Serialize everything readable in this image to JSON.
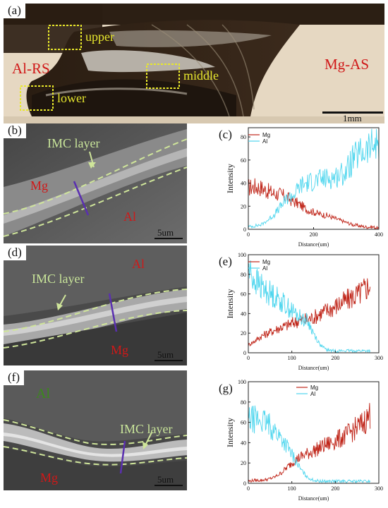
{
  "panels": {
    "a": {
      "letter": "(a)",
      "labels": {
        "al_rs": "Al-RS",
        "mg_as": "Mg-AS",
        "upper": "upper",
        "middle": "middle",
        "lower": "lower"
      },
      "scale": "1mm"
    },
    "b": {
      "letter": "(b)",
      "imc": "IMC layer",
      "mg": "Mg",
      "al": "Al",
      "scale": "5um"
    },
    "d": {
      "letter": "(d)",
      "imc": "IMC layer",
      "mg": "Mg",
      "al": "Al",
      "scale": "5um"
    },
    "f": {
      "letter": "(f)",
      "imc": "IMC layer",
      "mg": "Mg",
      "al": "Al",
      "scale": "5um"
    },
    "c": {
      "letter": "(c)"
    },
    "e": {
      "letter": "(e)"
    },
    "g": {
      "letter": "(g)"
    }
  },
  "colors": {
    "mg": "#c0261a",
    "al": "#4fd6ee",
    "imc_outline": "#cfe59a",
    "box": "#e8e82a",
    "line_scan": "#5a2fb0"
  },
  "chart_data": [
    {
      "id": "c",
      "type": "line",
      "xlabel": "Distance(um)",
      "ylabel": "Intensity",
      "xlim": [
        0,
        400
      ],
      "ylim": [
        0,
        88
      ],
      "xticks": [
        0,
        200,
        400
      ],
      "yticks": [
        0,
        20,
        40,
        60,
        80
      ],
      "legend": "top-left",
      "series": [
        {
          "name": "Mg",
          "x": [
            0,
            20,
            40,
            60,
            80,
            100,
            120,
            140,
            160,
            180,
            200,
            220,
            240,
            260,
            280,
            300,
            320,
            340,
            360,
            380,
            400
          ],
          "values": [
            36,
            37,
            36,
            33,
            31,
            30,
            27,
            24,
            21,
            17,
            15,
            13,
            12,
            10,
            8,
            6,
            4,
            3,
            2,
            2,
            1
          ]
        },
        {
          "name": "Al",
          "x": [
            0,
            20,
            40,
            60,
            80,
            100,
            120,
            140,
            160,
            180,
            200,
            220,
            240,
            260,
            280,
            300,
            320,
            340,
            360,
            380,
            400
          ],
          "values": [
            2,
            3,
            4,
            8,
            13,
            20,
            27,
            30,
            38,
            40,
            42,
            43,
            44,
            45,
            47,
            50,
            60,
            65,
            68,
            72,
            75
          ]
        }
      ]
    },
    {
      "id": "e",
      "type": "line",
      "xlabel": "Distance(um)",
      "ylabel": "Intensity",
      "xlim": [
        0,
        300
      ],
      "ylim": [
        0,
        100
      ],
      "xticks": [
        0,
        100,
        200,
        300
      ],
      "yticks": [
        0,
        20,
        40,
        60,
        80,
        100
      ],
      "legend": "top-left",
      "series": [
        {
          "name": "Mg",
          "x": [
            0,
            15,
            30,
            45,
            60,
            75,
            90,
            105,
            120,
            135,
            150,
            165,
            180,
            195,
            210,
            225,
            240,
            255,
            270,
            280
          ],
          "values": [
            8,
            12,
            17,
            20,
            23,
            26,
            28,
            31,
            33,
            34,
            36,
            40,
            43,
            46,
            50,
            53,
            57,
            60,
            66,
            70
          ]
        },
        {
          "name": "Al",
          "x": [
            0,
            15,
            30,
            45,
            60,
            75,
            90,
            105,
            120,
            135,
            150,
            165,
            180,
            195,
            210,
            225,
            240,
            255,
            270,
            280
          ],
          "values": [
            85,
            74,
            67,
            62,
            58,
            53,
            47,
            41,
            36,
            33,
            20,
            8,
            3,
            2,
            2,
            2,
            2,
            2,
            2,
            2
          ]
        }
      ]
    },
    {
      "id": "g",
      "type": "line",
      "xlabel": "Distance(um)",
      "ylabel": "Intensity",
      "xlim": [
        0,
        300
      ],
      "ylim": [
        0,
        100
      ],
      "xticks": [
        0,
        100,
        200,
        300
      ],
      "yticks": [
        0,
        20,
        40,
        60,
        80,
        100
      ],
      "legend": "top-right",
      "series": [
        {
          "name": "Mg",
          "x": [
            0,
            15,
            30,
            45,
            60,
            75,
            90,
            105,
            120,
            135,
            150,
            165,
            180,
            195,
            210,
            225,
            240,
            255,
            270,
            280
          ],
          "values": [
            2,
            3,
            3,
            4,
            6,
            10,
            16,
            22,
            26,
            29,
            32,
            35,
            38,
            41,
            44,
            47,
            52,
            56,
            62,
            68
          ]
        },
        {
          "name": "Al",
          "x": [
            0,
            15,
            30,
            45,
            60,
            75,
            90,
            105,
            120,
            135,
            150,
            165,
            180,
            195,
            210,
            225,
            240,
            255,
            270,
            280
          ],
          "values": [
            62,
            63,
            62,
            58,
            52,
            45,
            36,
            25,
            14,
            6,
            3,
            2,
            2,
            2,
            2,
            2,
            2,
            2,
            2,
            2
          ]
        }
      ]
    }
  ]
}
